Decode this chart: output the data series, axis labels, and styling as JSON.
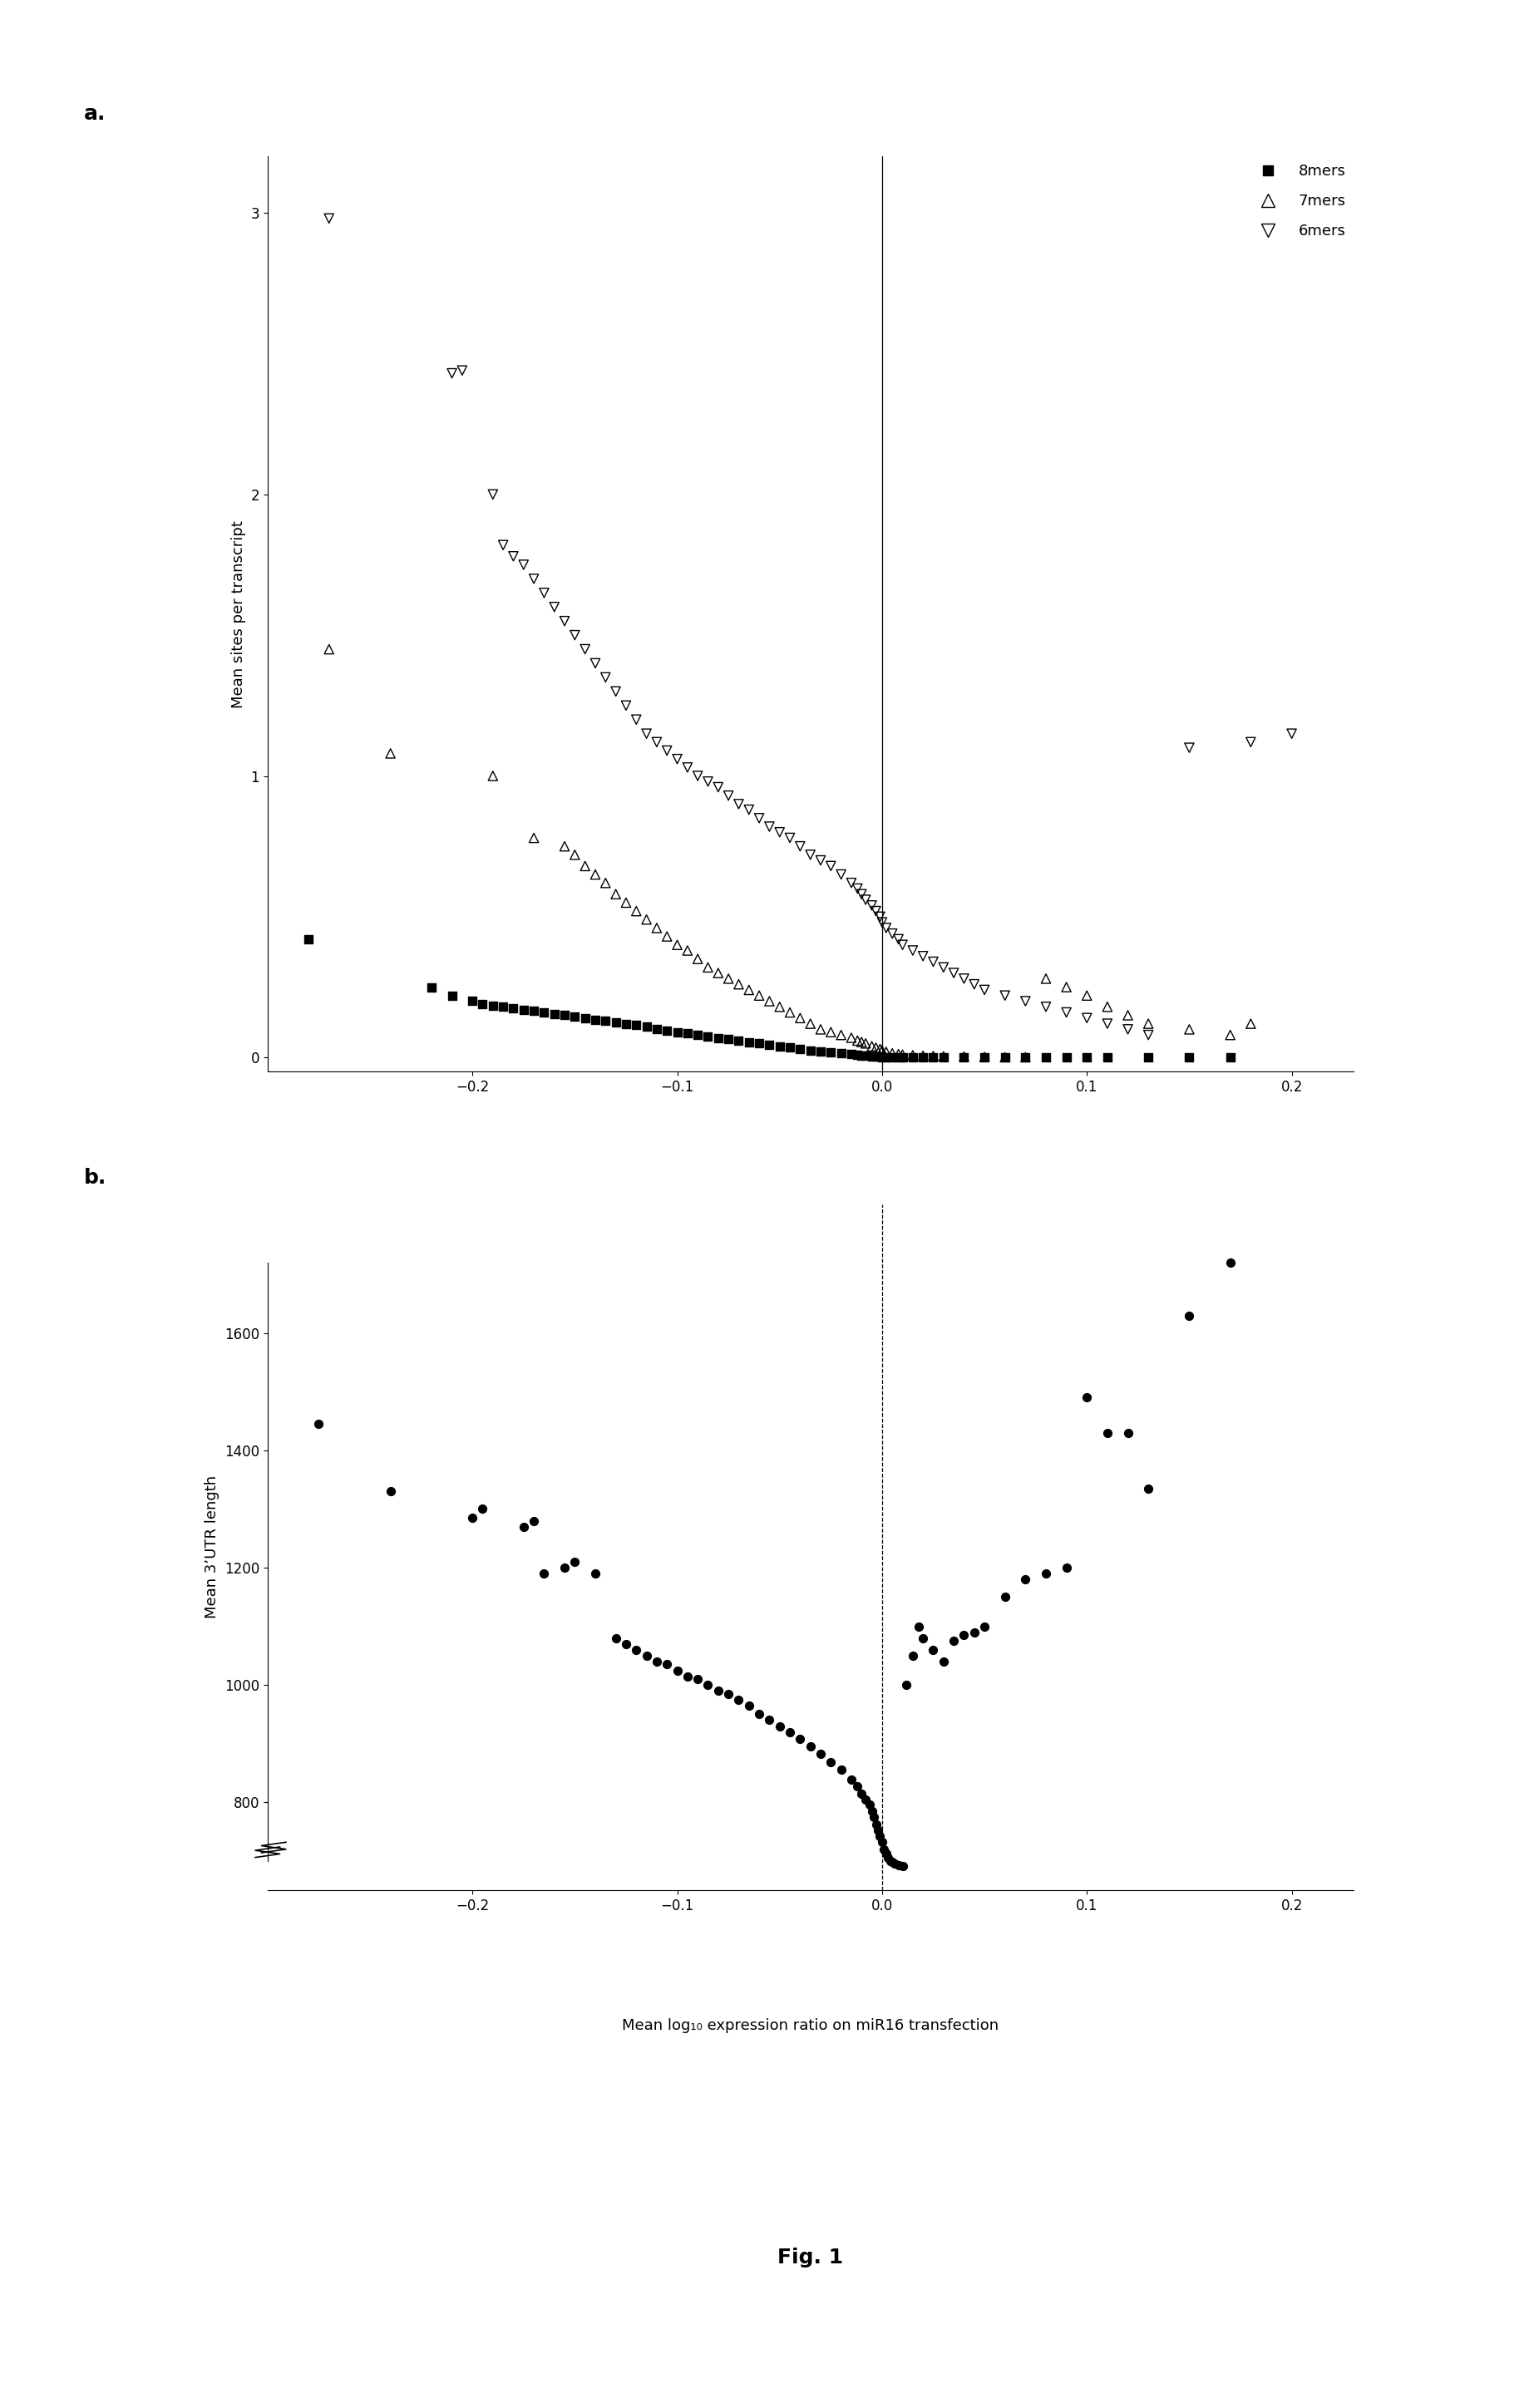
{
  "panel_a": {
    "eightmers_x": [
      -0.28,
      -0.22,
      -0.21,
      -0.2,
      -0.195,
      -0.19,
      -0.185,
      -0.18,
      -0.175,
      -0.17,
      -0.165,
      -0.16,
      -0.155,
      -0.15,
      -0.145,
      -0.14,
      -0.135,
      -0.13,
      -0.125,
      -0.12,
      -0.115,
      -0.11,
      -0.105,
      -0.1,
      -0.095,
      -0.09,
      -0.085,
      -0.08,
      -0.075,
      -0.07,
      -0.065,
      -0.06,
      -0.055,
      -0.05,
      -0.045,
      -0.04,
      -0.035,
      -0.03,
      -0.025,
      -0.02,
      -0.015,
      -0.012,
      -0.01,
      -0.008,
      -0.005,
      -0.003,
      -0.001,
      0.0,
      0.002,
      0.005,
      0.008,
      0.01,
      0.015,
      0.02,
      0.025,
      0.03,
      0.04,
      0.05,
      0.06,
      0.07,
      0.08,
      0.09,
      0.1,
      0.11,
      0.13,
      0.15,
      0.17
    ],
    "eightmers_y": [
      0.42,
      0.25,
      0.22,
      0.2,
      0.19,
      0.185,
      0.18,
      0.175,
      0.17,
      0.165,
      0.16,
      0.155,
      0.15,
      0.145,
      0.14,
      0.135,
      0.13,
      0.125,
      0.12,
      0.115,
      0.11,
      0.1,
      0.095,
      0.09,
      0.085,
      0.08,
      0.075,
      0.07,
      0.065,
      0.06,
      0.055,
      0.05,
      0.045,
      0.04,
      0.035,
      0.03,
      0.025,
      0.02,
      0.018,
      0.015,
      0.012,
      0.01,
      0.008,
      0.006,
      0.005,
      0.004,
      0.003,
      0.002,
      0.001,
      0.001,
      0.001,
      0.0,
      0.0,
      0.0,
      0.0,
      0.0,
      0.0,
      0.0,
      0.0,
      0.0,
      0.0,
      0.0,
      0.0,
      0.0,
      0.0,
      0.0,
      0.0
    ],
    "sevenmers_x": [
      -0.27,
      -0.24,
      -0.19,
      -0.17,
      -0.155,
      -0.15,
      -0.145,
      -0.14,
      -0.135,
      -0.13,
      -0.125,
      -0.12,
      -0.115,
      -0.11,
      -0.105,
      -0.1,
      -0.095,
      -0.09,
      -0.085,
      -0.08,
      -0.075,
      -0.07,
      -0.065,
      -0.06,
      -0.055,
      -0.05,
      -0.045,
      -0.04,
      -0.035,
      -0.03,
      -0.025,
      -0.02,
      -0.015,
      -0.012,
      -0.01,
      -0.008,
      -0.005,
      -0.003,
      -0.001,
      0.0,
      0.002,
      0.005,
      0.008,
      0.01,
      0.015,
      0.02,
      0.025,
      0.03,
      0.04,
      0.05,
      0.06,
      0.07,
      0.08,
      0.09,
      0.1,
      0.11,
      0.12,
      0.13,
      0.15,
      0.17,
      0.18
    ],
    "sevenmers_y": [
      1.45,
      1.08,
      1.0,
      0.78,
      0.75,
      0.72,
      0.68,
      0.65,
      0.62,
      0.58,
      0.55,
      0.52,
      0.49,
      0.46,
      0.43,
      0.4,
      0.38,
      0.35,
      0.32,
      0.3,
      0.28,
      0.26,
      0.24,
      0.22,
      0.2,
      0.18,
      0.16,
      0.14,
      0.12,
      0.1,
      0.09,
      0.08,
      0.07,
      0.06,
      0.055,
      0.05,
      0.04,
      0.035,
      0.03,
      0.025,
      0.02,
      0.015,
      0.012,
      0.01,
      0.008,
      0.006,
      0.005,
      0.004,
      0.003,
      0.002,
      0.001,
      0.001,
      0.28,
      0.25,
      0.22,
      0.18,
      0.15,
      0.12,
      0.1,
      0.08,
      0.12
    ],
    "sixmers_x": [
      -0.27,
      -0.21,
      -0.205,
      -0.19,
      -0.185,
      -0.18,
      -0.175,
      -0.17,
      -0.165,
      -0.16,
      -0.155,
      -0.15,
      -0.145,
      -0.14,
      -0.135,
      -0.13,
      -0.125,
      -0.12,
      -0.115,
      -0.11,
      -0.105,
      -0.1,
      -0.095,
      -0.09,
      -0.085,
      -0.08,
      -0.075,
      -0.07,
      -0.065,
      -0.06,
      -0.055,
      -0.05,
      -0.045,
      -0.04,
      -0.035,
      -0.03,
      -0.025,
      -0.02,
      -0.015,
      -0.012,
      -0.01,
      -0.008,
      -0.005,
      -0.003,
      -0.001,
      0.0,
      0.002,
      0.005,
      0.008,
      0.01,
      0.015,
      0.02,
      0.025,
      0.03,
      0.035,
      0.04,
      0.045,
      0.05,
      0.06,
      0.07,
      0.08,
      0.09,
      0.1,
      0.11,
      0.12,
      0.13,
      0.15,
      0.18,
      0.2
    ],
    "sixmers_y": [
      2.98,
      2.43,
      2.44,
      2.0,
      1.82,
      1.78,
      1.75,
      1.7,
      1.65,
      1.6,
      1.55,
      1.5,
      1.45,
      1.4,
      1.35,
      1.3,
      1.25,
      1.2,
      1.15,
      1.12,
      1.09,
      1.06,
      1.03,
      1.0,
      0.98,
      0.96,
      0.93,
      0.9,
      0.88,
      0.85,
      0.82,
      0.8,
      0.78,
      0.75,
      0.72,
      0.7,
      0.68,
      0.65,
      0.62,
      0.6,
      0.58,
      0.56,
      0.54,
      0.52,
      0.5,
      0.48,
      0.46,
      0.44,
      0.42,
      0.4,
      0.38,
      0.36,
      0.34,
      0.32,
      0.3,
      0.28,
      0.26,
      0.24,
      0.22,
      0.2,
      0.18,
      0.16,
      0.14,
      0.12,
      0.1,
      0.08,
      1.1,
      1.12,
      1.15
    ],
    "xlim": [
      -0.3,
      0.23
    ],
    "ylim": [
      -0.05,
      3.2
    ],
    "ylabel": "Mean sites per transcript",
    "xticks": [
      -0.2,
      -0.1,
      0.0,
      0.1,
      0.2
    ],
    "yticks": [
      0,
      1,
      2,
      3
    ],
    "vline_x": 0.0,
    "vline_style": "-",
    "label": "a."
  },
  "panel_b": {
    "x": [
      -0.275,
      -0.24,
      -0.2,
      -0.195,
      -0.175,
      -0.17,
      -0.165,
      -0.155,
      -0.15,
      -0.14,
      -0.13,
      -0.125,
      -0.12,
      -0.115,
      -0.11,
      -0.105,
      -0.1,
      -0.095,
      -0.09,
      -0.085,
      -0.08,
      -0.075,
      -0.07,
      -0.065,
      -0.06,
      -0.055,
      -0.05,
      -0.045,
      -0.04,
      -0.035,
      -0.03,
      -0.025,
      -0.02,
      -0.015,
      -0.012,
      -0.01,
      -0.008,
      -0.006,
      -0.005,
      -0.004,
      -0.003,
      -0.002,
      -0.001,
      0.0,
      0.001,
      0.002,
      0.003,
      0.004,
      0.005,
      0.006,
      0.008,
      0.01,
      0.012,
      0.015,
      0.018,
      0.02,
      0.025,
      0.03,
      0.035,
      0.04,
      0.045,
      0.05,
      0.06,
      0.07,
      0.08,
      0.09,
      0.1,
      0.11,
      0.12,
      0.13,
      0.15,
      0.17
    ],
    "y": [
      1445,
      1330,
      1285,
      1300,
      1270,
      1280,
      1190,
      1200,
      1210,
      1190,
      1080,
      1070,
      1060,
      1050,
      1040,
      1035,
      1025,
      1015,
      1010,
      1000,
      990,
      985,
      975,
      965,
      950,
      940,
      930,
      920,
      908,
      895,
      882,
      868,
      855,
      838,
      828,
      815,
      805,
      796,
      785,
      775,
      762,
      752,
      742,
      732,
      720,
      712,
      705,
      700,
      698,
      695,
      693,
      692,
      1000,
      1050,
      1100,
      1080,
      1060,
      1040,
      1075,
      1085,
      1090,
      1100,
      1150,
      1180,
      1190,
      1200,
      1490,
      1430,
      1430,
      1335,
      1630,
      1720
    ],
    "xlim": [
      -0.3,
      0.23
    ],
    "ylim": [
      650,
      1820
    ],
    "ylabel": "Mean 3’UTR length",
    "xlabel": "Mean log₁₀ expression ratio on miR16 transfection",
    "xticks": [
      -0.2,
      -0.1,
      0.0,
      0.1,
      0.2
    ],
    "yticks": [
      800,
      1000,
      1200,
      1400,
      1600
    ],
    "vline_x": 0.0,
    "vline_style": "--",
    "label": "b."
  },
  "fig_label": "Fig. 1",
  "bg_color": "#ffffff"
}
